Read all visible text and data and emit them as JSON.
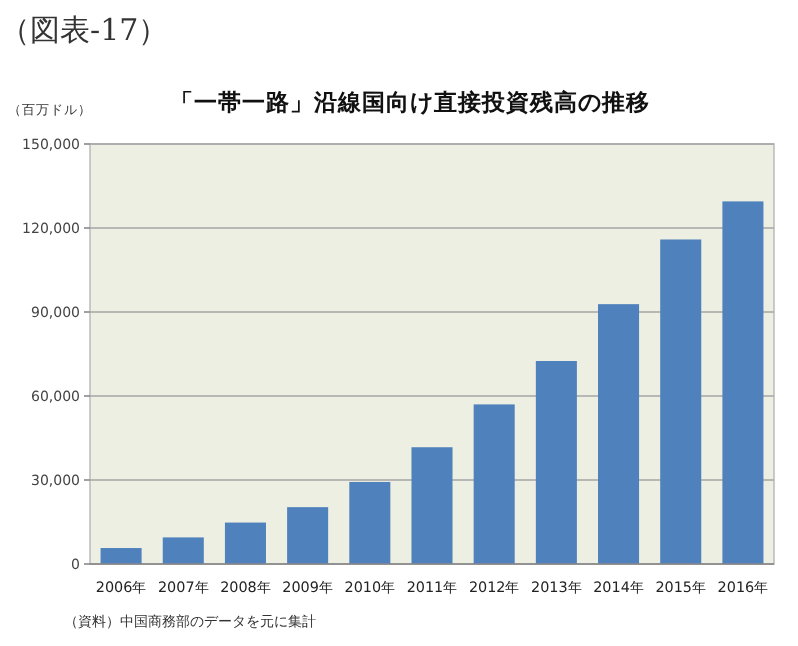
{
  "chart_data": {
    "type": "bar",
    "title": "「一帯一路」沿線国向け直接投資残高の推移",
    "ylabel": "（百万ドル）",
    "annotations": [
      "（図表-17）",
      "（資料）中国商務部のデータを元に集計"
    ],
    "categories": [
      "2006年",
      "2007年",
      "2008年",
      "2009年",
      "2010年",
      "2011年",
      "2012年",
      "2013年",
      "2014年",
      "2015年",
      "2016年"
    ],
    "values": [
      5700,
      9500,
      14800,
      20300,
      29300,
      41700,
      57000,
      72500,
      92800,
      115900,
      129500
    ],
    "color": "#4f81bd",
    "ylim": [
      0,
      150000
    ],
    "yticks": [
      {
        "value": 0,
        "label": "0"
      },
      {
        "value": 30000,
        "label": "30,000"
      },
      {
        "value": 60000,
        "label": "60,000"
      },
      {
        "value": 90000,
        "label": "90,000"
      },
      {
        "value": 120000,
        "label": "120,000"
      },
      {
        "value": 150000,
        "label": "150,000"
      }
    ],
    "grid": "y"
  }
}
